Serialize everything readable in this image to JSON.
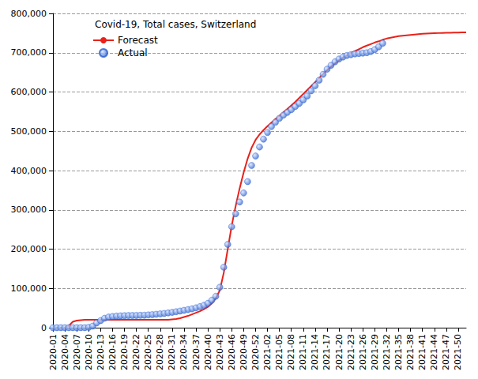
{
  "chart_data": {
    "type": "line",
    "title": "Covid-19, Total cases, Switzerland",
    "categories": [
      "2020-01",
      null,
      null,
      "2020-04",
      null,
      null,
      "2020-07",
      null,
      null,
      "2020-10",
      null,
      null,
      "2020-13",
      null,
      null,
      "2020-16",
      null,
      null,
      "2020-19",
      null,
      null,
      "2020-22",
      null,
      null,
      "2020-25",
      null,
      null,
      "2020-28",
      null,
      null,
      "2020-31",
      null,
      null,
      "2020-34",
      null,
      null,
      "2020-37",
      null,
      null,
      "2020-40",
      null,
      null,
      "2020-43",
      null,
      null,
      "2020-46",
      null,
      null,
      "2020-49",
      null,
      null,
      "2020-52",
      null,
      null,
      "2021-02",
      null,
      null,
      "2021-05",
      null,
      null,
      "2021-08",
      null,
      null,
      "2021-11",
      null,
      null,
      "2021-14",
      null,
      null,
      "2021-17",
      null,
      null,
      "2021-20",
      null,
      null,
      "2021-23",
      null,
      null,
      "2021-26",
      null,
      null,
      "2021-29",
      null,
      null,
      "2021-32",
      null,
      null,
      "2021-35",
      null,
      null,
      "2021-38",
      null,
      null,
      "2021-41",
      null,
      null,
      "2021-44",
      null,
      null,
      "2021-47",
      null,
      null,
      "2021-50",
      null,
      null
    ],
    "series": [
      {
        "name": "Forecast",
        "type": "line",
        "color": "#e8221a",
        "line_style": "solid",
        "values": [
          0,
          0,
          0,
          0,
          5000,
          15000,
          18000,
          19000,
          20000,
          20000,
          20000,
          20000,
          20000,
          20000,
          20000,
          20000,
          20000,
          20000,
          20000,
          20000,
          20000,
          20000,
          20000,
          20000,
          20000,
          20000,
          20000,
          20000,
          20000,
          20000,
          21000,
          22000,
          24000,
          27000,
          30000,
          34000,
          38000,
          42000,
          47000,
          53000,
          62000,
          75000,
          95000,
          140000,
          200000,
          260000,
          310000,
          355000,
          395000,
          430000,
          458000,
          478000,
          492000,
          503000,
          513000,
          522000,
          531000,
          539000,
          548000,
          557000,
          566000,
          575000,
          585000,
          595000,
          605000,
          615000,
          625000,
          636000,
          646000,
          656000,
          665000,
          673000,
          681000,
          688000,
          694000,
          699000,
          704000,
          709000,
          714000,
          718000,
          722000,
          726000,
          729000,
          733000,
          736000,
          738000,
          740000,
          742000,
          743000,
          744000,
          745000,
          746000,
          747000,
          748000,
          748500,
          749000,
          749500,
          750000,
          750500,
          751000,
          751000,
          751500,
          751500,
          752000,
          752000
        ]
      },
      {
        "name": "Actual",
        "type": "scatter",
        "color": "#2a5fd0",
        "marker": "circle",
        "values": [
          0,
          0,
          0,
          0,
          0,
          0,
          0,
          0,
          100,
          1000,
          4000,
          12000,
          18000,
          24000,
          27000,
          28500,
          29500,
          30200,
          30600,
          30900,
          31100,
          31300,
          31500,
          31800,
          32500,
          33300,
          34200,
          35200,
          36300,
          37600,
          39000,
          40600,
          42300,
          44100,
          46000,
          48000,
          50500,
          53500,
          57000,
          62000,
          70000,
          80000,
          103000,
          154000,
          212000,
          257000,
          290000,
          320000,
          343000,
          372000,
          413000,
          437000,
          460000,
          480000,
          497000,
          512000,
          523000,
          533000,
          541000,
          548000,
          555000,
          563000,
          571000,
          580000,
          590000,
          603000,
          616000,
          630000,
          645000,
          658000,
          668000,
          677000,
          684000,
          689000,
          693000,
          695000,
          697000,
          698000,
          699000,
          700000,
          703000,
          708000,
          715000,
          724000,
          null,
          null,
          null,
          null,
          null,
          null,
          null,
          null,
          null,
          null,
          null,
          null,
          null,
          null,
          null,
          null,
          null,
          null,
          null,
          null,
          null
        ]
      }
    ],
    "ylim": [
      0,
      800000
    ],
    "yticks": [
      0,
      {
        "value": 100000,
        "label": "100,000"
      },
      {
        "value": 200000,
        "label": "200,000"
      },
      {
        "value": 300000,
        "label": "300,000"
      },
      {
        "value": 400000,
        "label": "400,000"
      },
      {
        "value": 500000,
        "label": "500,000"
      },
      {
        "value": 600000,
        "label": "600,000"
      },
      {
        "value": 700000,
        "label": "700,000"
      },
      {
        "value": 800000,
        "label": "800,000"
      }
    ],
    "grid": true,
    "legend": "upper left"
  }
}
